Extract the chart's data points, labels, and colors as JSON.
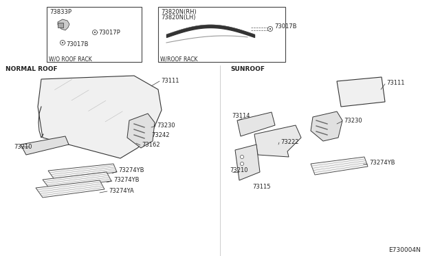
{
  "bg_color": "#ffffff",
  "diagram_code": "E730004N",
  "box1_label": "W/O ROOF RACK",
  "box2_label": "W/ROOF RACK",
  "section1_label": "NORMAL ROOF",
  "section2_label": "SUNROOF",
  "font_color": "#222222"
}
